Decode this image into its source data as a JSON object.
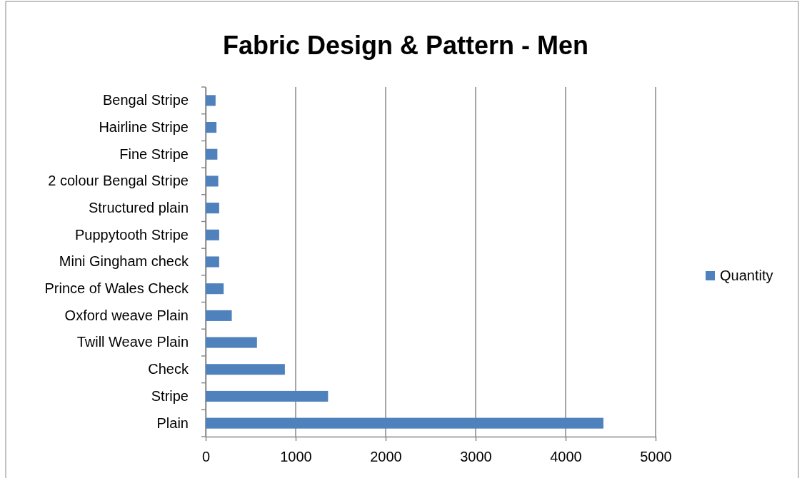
{
  "chart_data": {
    "type": "bar",
    "title": "Fabric Design & Pattern - Men",
    "orientation": "horizontal",
    "categories": [
      "Bengal Stripe",
      "Hairline Stripe",
      "Fine Stripe",
      "2 colour Bengal Stripe",
      "Structured plain",
      "Puppytooth Stripe",
      "Mini Gingham check",
      "Prince of Wales Check",
      "Oxford weave Plain",
      "Twill Weave Plain",
      "Check",
      "Stripe",
      "Plain"
    ],
    "series": [
      {
        "name": "Quantity",
        "color": "#4f81bd",
        "values": [
          110,
          120,
          130,
          140,
          150,
          150,
          150,
          200,
          290,
          570,
          880,
          1360,
          4420
        ]
      }
    ],
    "xlim": [
      0,
      5000
    ],
    "xticks": [
      0,
      1000,
      2000,
      3000,
      4000,
      5000
    ],
    "grid": "x",
    "legend": "right"
  }
}
